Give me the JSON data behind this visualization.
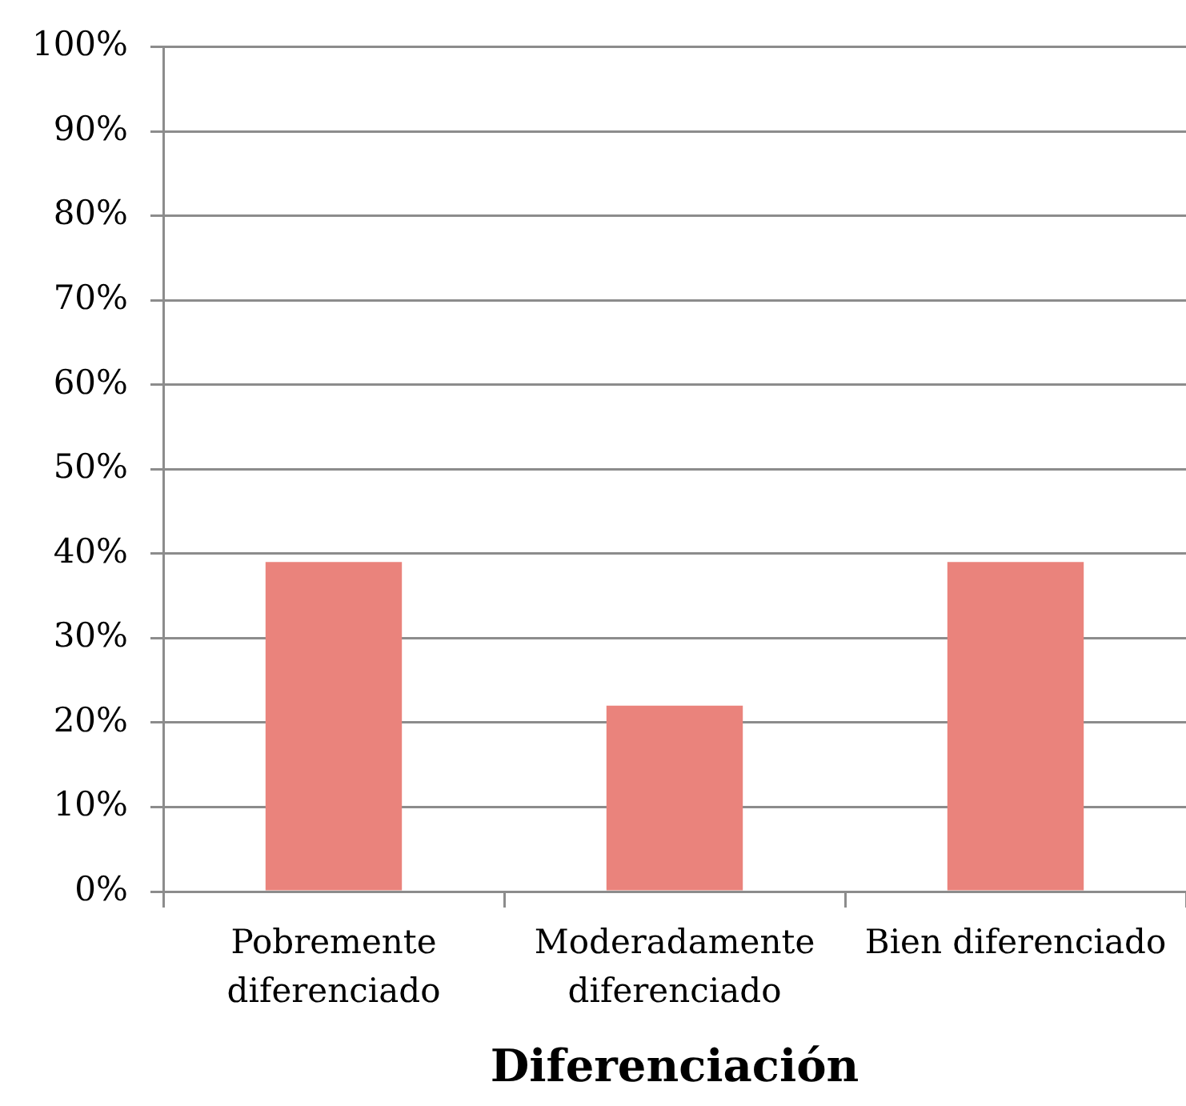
{
  "chart_data": {
    "type": "bar",
    "xlabel": "Diferenciación",
    "categories": [
      "Pobremente diferenciado",
      "Moderadamente diferenciado",
      "Bien diferenciado"
    ],
    "values": [
      39,
      22,
      39
    ],
    "color": "#ea837c",
    "ylim": [
      0,
      100
    ],
    "yticks": [
      {
        "value": 0,
        "label": "0%"
      },
      {
        "value": 10,
        "label": "10%"
      },
      {
        "value": 20,
        "label": "20%"
      },
      {
        "value": 30,
        "label": "30%"
      },
      {
        "value": 40,
        "label": "40%"
      },
      {
        "value": 50,
        "label": "50%"
      },
      {
        "value": 60,
        "label": "60%"
      },
      {
        "value": 70,
        "label": "70%"
      },
      {
        "value": 80,
        "label": "80%"
      },
      {
        "value": 90,
        "label": "90%"
      },
      {
        "value": 100,
        "label": "100%"
      }
    ],
    "grid": "y"
  }
}
